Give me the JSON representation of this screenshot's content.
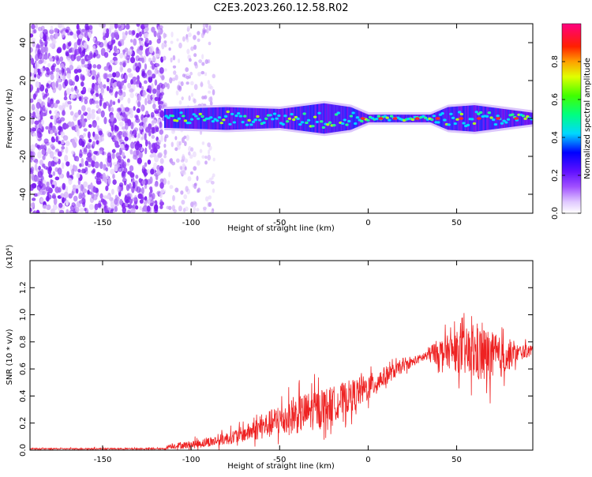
{
  "title": "C2E3.2023.260.12.58.R02",
  "colors": {
    "spectrum_purple": "#7a1cf0",
    "spectrum_ridge": "#00e0ff",
    "snr_line": "#ee2222",
    "axes": "#000000"
  },
  "chart_data": [
    {
      "type": "heatmap",
      "title": "C2E3.2023.260.12.58.R02",
      "xlabel": "Height of straight line (km)",
      "ylabel": "Frequency (Hz)",
      "xlim": [
        -191,
        93
      ],
      "ylim": [
        -50,
        50
      ],
      "x_ticks": [
        -150,
        -100,
        -50,
        0,
        50
      ],
      "x_tick_labels": [
        "-150",
        "-100",
        "-50",
        "0",
        "50"
      ],
      "y_ticks": [
        -40,
        -20,
        0,
        20,
        40
      ],
      "y_tick_labels": [
        "-40",
        "-20",
        "0",
        "20",
        "40"
      ],
      "noise_region_km": [
        -191,
        -115
      ],
      "sparse_noise_region_km": [
        -115,
        -87
      ],
      "signal_band_center_hz": 0,
      "signal_band_halfwidth_hz": [
        {
          "x": -113,
          "w": 5
        },
        {
          "x": -80,
          "w": 6
        },
        {
          "x": -50,
          "w": 5
        },
        {
          "x": -25,
          "w": 8
        },
        {
          "x": -10,
          "w": 6
        },
        {
          "x": 0,
          "w": 2
        },
        {
          "x": 35,
          "w": 2
        },
        {
          "x": 45,
          "w": 6
        },
        {
          "x": 60,
          "w": 7
        },
        {
          "x": 93,
          "w": 3
        }
      ],
      "colorbar": {
        "label": "Normalized spectral amplitude",
        "range": [
          0,
          1
        ],
        "ticks": [
          0.0,
          0.2,
          0.4,
          0.6,
          0.8
        ],
        "tick_labels": [
          "0.0",
          "0.2",
          "0.4",
          "0.6",
          "0.8"
        ]
      }
    },
    {
      "type": "line",
      "xlabel": "Height of straight line (km)",
      "ylabel": "SNR (10 * v/v)",
      "scale_label": "(x10⁴)",
      "xlim": [
        -191,
        93
      ],
      "ylim": [
        0,
        1.4
      ],
      "x_ticks": [
        -150,
        -100,
        -50,
        0,
        50
      ],
      "x_tick_labels": [
        "-150",
        "-100",
        "-50",
        "0",
        "50"
      ],
      "y_ticks": [
        0.0,
        0.2,
        0.4,
        0.6,
        0.8,
        1.0,
        1.2
      ],
      "y_tick_labels": [
        "0.0",
        "0.2",
        "0.4",
        "0.6",
        "0.8",
        "1.0",
        "1.2"
      ],
      "series": [
        {
          "envelope_x": [
            -191,
            -115,
            -112,
            -100,
            -85,
            -70,
            -60,
            -50,
            -40,
            -30,
            -20,
            -10,
            0,
            10,
            20,
            30,
            37,
            45,
            55,
            65,
            75,
            85,
            93
          ],
          "mean": [
            0.01,
            0.01,
            0.03,
            0.04,
            0.07,
            0.12,
            0.17,
            0.22,
            0.26,
            0.3,
            0.34,
            0.4,
            0.46,
            0.55,
            0.62,
            0.68,
            0.72,
            0.73,
            0.72,
            0.7,
            0.68,
            0.72,
            0.74
          ],
          "noise": [
            0.005,
            0.005,
            0.02,
            0.03,
            0.04,
            0.06,
            0.09,
            0.12,
            0.14,
            0.15,
            0.13,
            0.12,
            0.1,
            0.07,
            0.04,
            0.03,
            0.08,
            0.12,
            0.18,
            0.22,
            0.15,
            0.06,
            0.04
          ]
        }
      ]
    }
  ]
}
